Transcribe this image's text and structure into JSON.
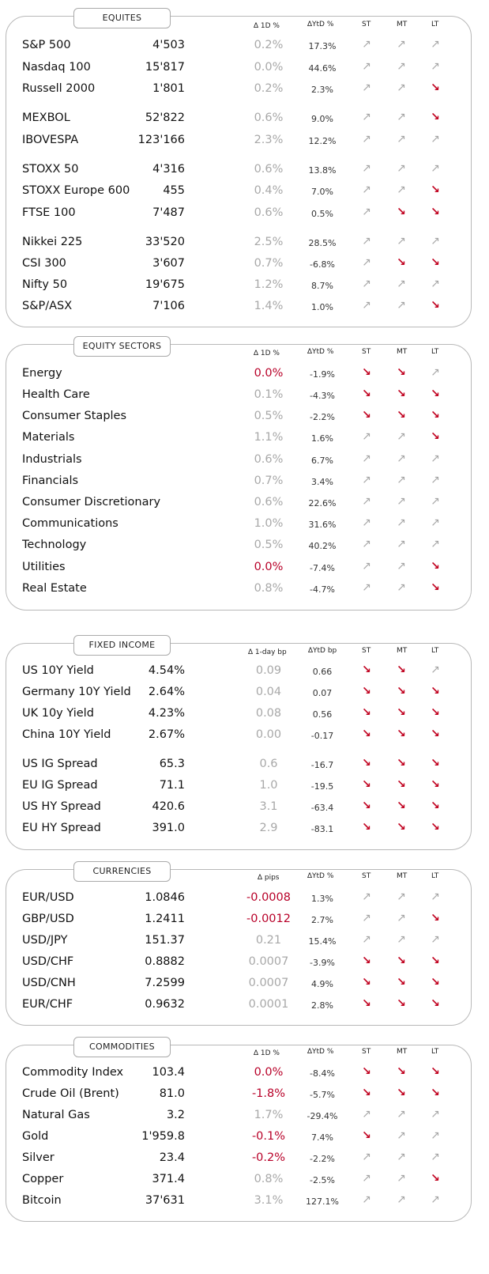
{
  "colors": {
    "neutral": "#a8a8a8",
    "negative": "#b80028",
    "arrow_up": "#a6a6a6",
    "arrow_down": "#c0001e"
  },
  "equities": {
    "title": "EQUITES",
    "headers": {
      "d1": "∆ 1D %",
      "ytd": "∆YtD %",
      "st": "ST",
      "mt": "MT",
      "lt": "LT"
    },
    "rows": [
      {
        "name": "S&P 500",
        "last": "4'503",
        "d1": "0.2%",
        "ytd": "17.3%",
        "st": "up",
        "mt": "up",
        "lt": "up",
        "neg": false
      },
      {
        "name": "Nasdaq 100",
        "last": "15'817",
        "d1": "0.0%",
        "ytd": "44.6%",
        "st": "up",
        "mt": "up",
        "lt": "up",
        "neg": false
      },
      {
        "name": "Russell 2000",
        "last": "1'801",
        "d1": "0.2%",
        "ytd": "2.3%",
        "st": "up",
        "mt": "up",
        "lt": "down",
        "neg": false
      },
      {
        "name": "MEXBOL",
        "last": "52'822",
        "d1": "0.6%",
        "ytd": "9.0%",
        "st": "up",
        "mt": "up",
        "lt": "down",
        "neg": false
      },
      {
        "name": "IBOVESPA",
        "last": "123'166",
        "d1": "2.3%",
        "ytd": "12.2%",
        "st": "up",
        "mt": "up",
        "lt": "up",
        "neg": false
      },
      {
        "name": "STOXX 50",
        "last": "4'316",
        "d1": "0.6%",
        "ytd": "13.8%",
        "st": "up",
        "mt": "up",
        "lt": "up",
        "neg": false
      },
      {
        "name": "STOXX Europe 600",
        "last": "455",
        "d1": "0.4%",
        "ytd": "7.0%",
        "st": "up",
        "mt": "up",
        "lt": "down",
        "neg": false
      },
      {
        "name": "FTSE 100",
        "last": "7'487",
        "d1": "0.6%",
        "ytd": "0.5%",
        "st": "up",
        "mt": "down",
        "lt": "down",
        "neg": false
      },
      {
        "name": "Nikkei 225",
        "last": "33'520",
        "d1": "2.5%",
        "ytd": "28.5%",
        "st": "up",
        "mt": "up",
        "lt": "up",
        "neg": false
      },
      {
        "name": "CSI 300",
        "last": "3'607",
        "d1": "0.7%",
        "ytd": "-6.8%",
        "st": "up",
        "mt": "down",
        "lt": "down",
        "neg": false
      },
      {
        "name": "Nifty  50",
        "last": "19'675",
        "d1": "1.2%",
        "ytd": "8.7%",
        "st": "up",
        "mt": "up",
        "lt": "up",
        "neg": false
      },
      {
        "name": "S&P/ASX",
        "last": "7'106",
        "d1": "1.4%",
        "ytd": "1.0%",
        "st": "up",
        "mt": "up",
        "lt": "down",
        "neg": false
      }
    ]
  },
  "sectors": {
    "title": "EQUITY  SECTORS",
    "headers": {
      "d1": "∆ 1D %",
      "ytd": "∆YtD %",
      "st": "ST",
      "mt": "MT",
      "lt": "LT"
    },
    "rows": [
      {
        "name": "Energy",
        "last": "",
        "d1": "0.0%",
        "ytd": "-1.9%",
        "st": "down",
        "mt": "down",
        "lt": "up",
        "neg": true
      },
      {
        "name": "Health Care",
        "last": "",
        "d1": "0.1%",
        "ytd": "-4.3%",
        "st": "down",
        "mt": "down",
        "lt": "down",
        "neg": false
      },
      {
        "name": "Consumer Staples",
        "last": "",
        "d1": "0.5%",
        "ytd": "-2.2%",
        "st": "down",
        "mt": "down",
        "lt": "down",
        "neg": false
      },
      {
        "name": "Materials",
        "last": "",
        "d1": "1.1%",
        "ytd": "1.6%",
        "st": "up",
        "mt": "up",
        "lt": "down",
        "neg": false
      },
      {
        "name": "Industrials",
        "last": "",
        "d1": "0.6%",
        "ytd": "6.7%",
        "st": "up",
        "mt": "up",
        "lt": "up",
        "neg": false
      },
      {
        "name": "Financials",
        "last": "",
        "d1": "0.7%",
        "ytd": "3.4%",
        "st": "up",
        "mt": "up",
        "lt": "up",
        "neg": false
      },
      {
        "name": "Consumer Discretionary",
        "last": "",
        "d1": "0.6%",
        "ytd": "22.6%",
        "st": "up",
        "mt": "up",
        "lt": "up",
        "neg": false
      },
      {
        "name": "Communications",
        "last": "",
        "d1": "1.0%",
        "ytd": "31.6%",
        "st": "up",
        "mt": "up",
        "lt": "up",
        "neg": false
      },
      {
        "name": "Technology",
        "last": "",
        "d1": "0.5%",
        "ytd": "40.2%",
        "st": "up",
        "mt": "up",
        "lt": "up",
        "neg": false
      },
      {
        "name": "Utilities",
        "last": "",
        "d1": "0.0%",
        "ytd": "-7.4%",
        "st": "up",
        "mt": "up",
        "lt": "down",
        "neg": true
      },
      {
        "name": "Real Estate",
        "last": "",
        "d1": "0.8%",
        "ytd": "-4.7%",
        "st": "up",
        "mt": "up",
        "lt": "down",
        "neg": false
      }
    ]
  },
  "fixed_income": {
    "title": "FIXED  INCOME",
    "headers": {
      "d1": "∆ 1-day bp",
      "ytd": "∆YtD bp",
      "st": "ST",
      "mt": "MT",
      "lt": "LT"
    },
    "rows": [
      {
        "name": "US 10Y Yield",
        "last": "4.54%",
        "d1": "0.09",
        "ytd": "0.66",
        "st": "down",
        "mt": "down",
        "lt": "up",
        "neg": false
      },
      {
        "name": "Germany 10Y Yield",
        "last": "2.64%",
        "d1": "0.04",
        "ytd": "0.07",
        "st": "down",
        "mt": "down",
        "lt": "down",
        "neg": false
      },
      {
        "name": "UK 10y Yield",
        "last": "4.23%",
        "d1": "0.08",
        "ytd": "0.56",
        "st": "down",
        "mt": "down",
        "lt": "down",
        "neg": false
      },
      {
        "name": "China 10Y Yield",
        "last": "2.67%",
        "d1": "0.00",
        "ytd": "-0.17",
        "st": "down",
        "mt": "down",
        "lt": "down",
        "neg": false
      },
      {
        "name": "US IG Spread",
        "last": "65.3",
        "d1": "0.6",
        "ytd": "-16.7",
        "st": "down",
        "mt": "down",
        "lt": "down",
        "neg": false
      },
      {
        "name": "EU IG Spread",
        "last": "71.1",
        "d1": "1.0",
        "ytd": "-19.5",
        "st": "down",
        "mt": "down",
        "lt": "down",
        "neg": false
      },
      {
        "name": "US HY Spread",
        "last": "420.6",
        "d1": "3.1",
        "ytd": "-63.4",
        "st": "down",
        "mt": "down",
        "lt": "down",
        "neg": false
      },
      {
        "name": "EU HY Spread",
        "last": "391.0",
        "d1": "2.9",
        "ytd": "-83.1",
        "st": "down",
        "mt": "down",
        "lt": "down",
        "neg": false
      }
    ]
  },
  "currencies": {
    "title": "CURRENCIES",
    "headers": {
      "d1": "∆ pips",
      "ytd": "∆YtD %",
      "st": "ST",
      "mt": "MT",
      "lt": "LT"
    },
    "rows": [
      {
        "name": "EUR/USD",
        "last": "1.0846",
        "d1": "-0.0008",
        "ytd": "1.3%",
        "st": "up",
        "mt": "up",
        "lt": "up",
        "neg": true
      },
      {
        "name": "GBP/USD",
        "last": "1.2411",
        "d1": "-0.0012",
        "ytd": "2.7%",
        "st": "up",
        "mt": "up",
        "lt": "down",
        "neg": true
      },
      {
        "name": "USD/JPY",
        "last": "151.37",
        "d1": "0.21",
        "ytd": "15.4%",
        "st": "up",
        "mt": "up",
        "lt": "up",
        "neg": false
      },
      {
        "name": "USD/CHF",
        "last": "0.8882",
        "d1": "0.0007",
        "ytd": "-3.9%",
        "st": "down",
        "mt": "down",
        "lt": "down",
        "neg": false
      },
      {
        "name": "USD/CNH",
        "last": "7.2599",
        "d1": "0.0007",
        "ytd": "4.9%",
        "st": "down",
        "mt": "down",
        "lt": "down",
        "neg": false
      },
      {
        "name": "EUR/CHF",
        "last": "0.9632",
        "d1": "0.0001",
        "ytd": "2.8%",
        "st": "down",
        "mt": "down",
        "lt": "down",
        "neg": false
      }
    ]
  },
  "commodities": {
    "title": "COMMODITIES",
    "headers": {
      "d1": "∆ 1D %",
      "ytd": "∆YtD %",
      "st": "ST",
      "mt": "MT",
      "lt": "LT"
    },
    "rows": [
      {
        "name": "Commodity Index",
        "last": "103.4",
        "d1": "0.0%",
        "ytd": "-8.4%",
        "st": "down",
        "mt": "down",
        "lt": "down",
        "neg": true
      },
      {
        "name": "Crude Oil (Brent)",
        "last": "81.0",
        "d1": "-1.8%",
        "ytd": "-5.7%",
        "st": "down",
        "mt": "down",
        "lt": "down",
        "neg": true
      },
      {
        "name": "Natural Gas",
        "last": "3.2",
        "d1": "1.7%",
        "ytd": "-29.4%",
        "st": "up",
        "mt": "up",
        "lt": "up",
        "neg": false
      },
      {
        "name": "Gold",
        "last": "1'959.8",
        "d1": "-0.1%",
        "ytd": "7.4%",
        "st": "down",
        "mt": "up",
        "lt": "up",
        "neg": true
      },
      {
        "name": "Silver",
        "last": "23.4",
        "d1": "-0.2%",
        "ytd": "-2.2%",
        "st": "up",
        "mt": "up",
        "lt": "up",
        "neg": true
      },
      {
        "name": "Copper",
        "last": "371.4",
        "d1": "0.8%",
        "ytd": "-2.5%",
        "st": "up",
        "mt": "up",
        "lt": "down",
        "neg": false
      },
      {
        "name": "Bitcoin",
        "last": "37'631",
        "d1": "3.1%",
        "ytd": "127.1%",
        "st": "up",
        "mt": "up",
        "lt": "up",
        "neg": false
      }
    ]
  }
}
